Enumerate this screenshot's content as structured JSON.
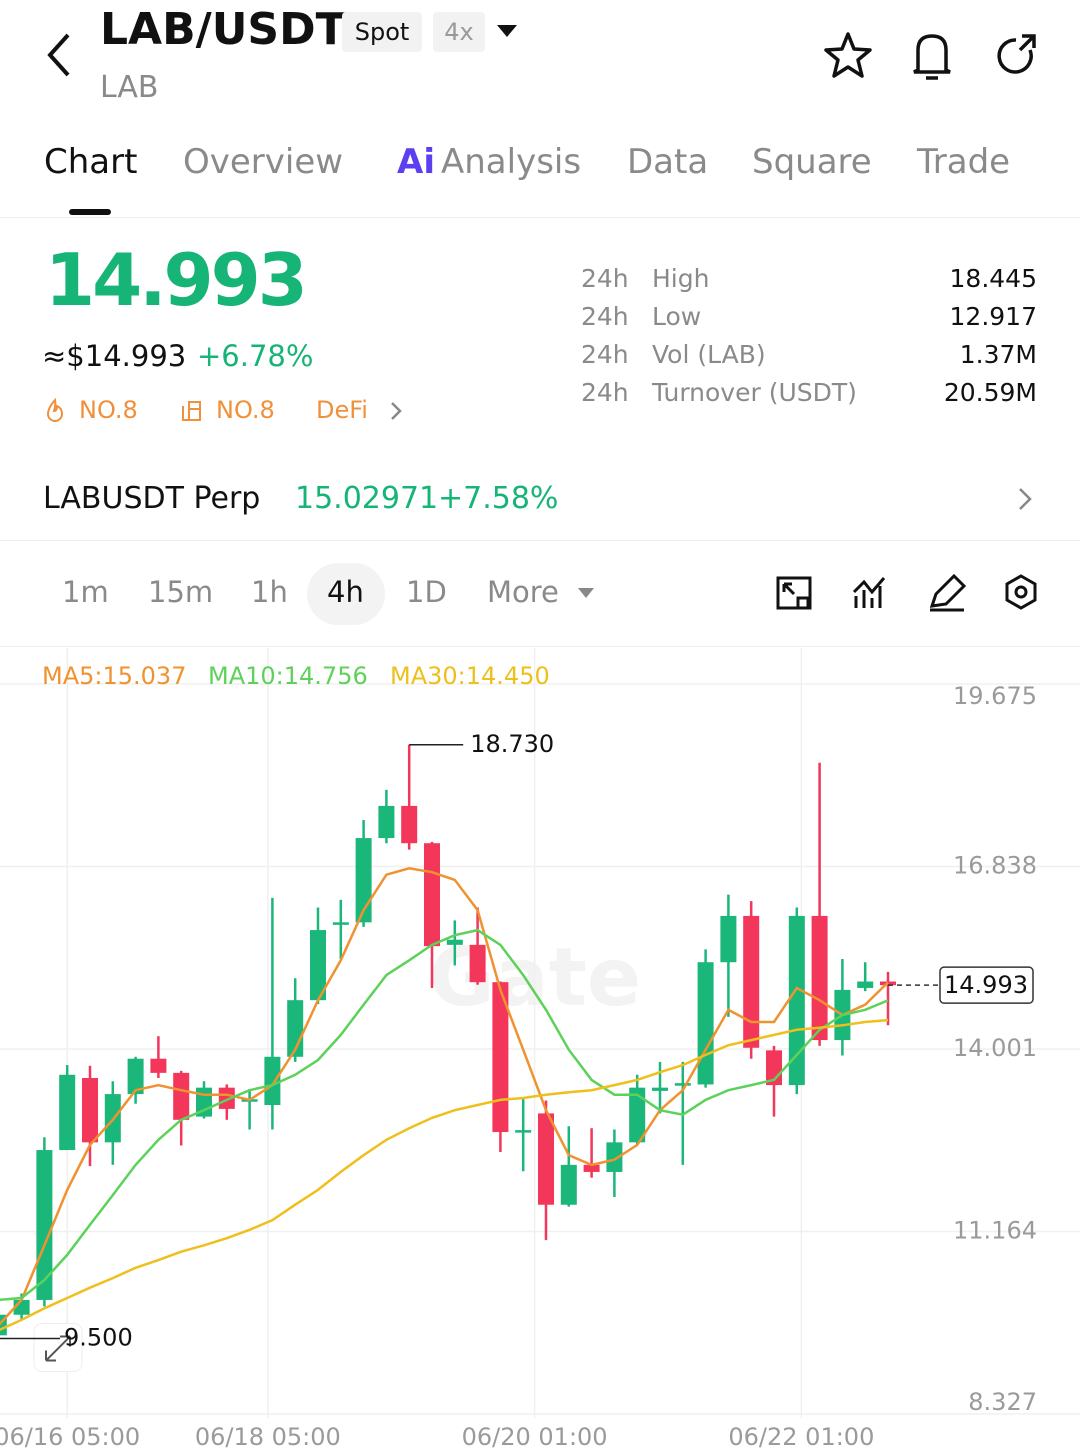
{
  "header": {
    "title": "LAB/USDT",
    "badges": [
      "Spot",
      "4x"
    ],
    "subtitle": "LAB"
  },
  "tabs": {
    "items": [
      "Chart",
      "Overview",
      "Analysis",
      "Data",
      "Square",
      "Trade"
    ],
    "ai_icon": "Ai"
  },
  "price": {
    "last": "14.993",
    "usd": "≈$14.993",
    "change": "+6.78%",
    "tags": [
      "NO.8",
      "NO.8",
      "DeFi"
    ]
  },
  "stats": {
    "rows": [
      [
        "24h",
        "High",
        "18.445"
      ],
      [
        "24h",
        "Low",
        "12.917"
      ],
      [
        "24h",
        "Vol (LAB)",
        "1.37M"
      ],
      [
        "24h",
        "Turnover (USDT)",
        "20.59M"
      ]
    ]
  },
  "perp": {
    "name": "LABUSDT Perp",
    "price": "15.02971",
    "change": "+7.58%"
  },
  "timeframes": [
    "1m",
    "15m",
    "1h",
    "4h",
    "1D",
    "More"
  ],
  "chart_data": {
    "type": "candlestick",
    "categories": [
      null,
      null,
      null,
      null,
      null,
      null,
      null,
      null,
      null,
      null,
      null,
      null,
      null,
      null,
      null,
      null,
      null,
      null,
      null,
      null,
      null,
      null,
      null,
      null,
      null,
      null,
      null,
      null,
      null,
      null,
      null,
      null,
      null,
      null,
      null,
      null,
      null,
      null,
      null,
      null
    ],
    "open": [
      9.55,
      9.87,
      10.1,
      12.43,
      13.55,
      12.55,
      13.3,
      13.85,
      13.63,
      12.95,
      13.4,
      13.2,
      13.13,
      13.88,
      14.76,
      15.95,
      15.97,
      17.28,
      17.78,
      17.2,
      15.62,
      15.62,
      15.04,
      12.72,
      13.0,
      11.58,
      12.2,
      12.09,
      12.55,
      13.35,
      13.45,
      13.45,
      15.35,
      16.07,
      13.98,
      13.44,
      16.07,
      14.14,
      14.95,
      15.05
    ],
    "high": [
      9.95,
      10.2,
      12.63,
      13.75,
      13.74,
      13.5,
      13.88,
      14.2,
      13.66,
      13.5,
      13.45,
      13.38,
      16.35,
      15.1,
      16.2,
      16.32,
      17.56,
      18.03,
      18.73,
      17.22,
      16.0,
      16.2,
      15.05,
      13.25,
      13.2,
      12.8,
      12.77,
      12.75,
      13.6,
      13.8,
      13.8,
      15.55,
      16.4,
      16.3,
      14.05,
      16.2,
      18.45,
      15.4,
      15.35,
      15.2
    ],
    "low": [
      9.5,
      9.8,
      10.0,
      12.43,
      12.18,
      12.2,
      13.15,
      13.55,
      12.5,
      12.92,
      12.9,
      12.75,
      12.75,
      13.8,
      14.7,
      15.4,
      15.9,
      17.2,
      17.1,
      14.95,
      15.3,
      15.0,
      12.4,
      12.1,
      11.03,
      11.55,
      12.0,
      11.7,
      12.5,
      13.0,
      12.2,
      13.4,
      14.5,
      13.85,
      12.95,
      13.3,
      14.05,
      13.9,
      14.9,
      14.37
    ],
    "close": [
      9.87,
      10.1,
      12.43,
      13.6,
      12.55,
      13.3,
      13.85,
      13.63,
      12.9,
      13.4,
      13.07,
      13.22,
      13.88,
      14.76,
      15.85,
      15.97,
      17.28,
      17.78,
      17.2,
      15.6,
      15.7,
      15.04,
      12.71,
      12.74,
      11.58,
      12.2,
      12.09,
      12.55,
      13.4,
      13.4,
      13.47,
      15.35,
      16.07,
      14.02,
      13.44,
      16.07,
      14.14,
      14.92,
      15.05,
      14.993
    ],
    "up_color": "#1bb67a",
    "down_color": "#f2375b",
    "series": [
      {
        "name": "MA5:15.037",
        "color": "#f0922f",
        "values": [
          9.71,
          10.1,
          10.95,
          11.81,
          12.51,
          12.9,
          13.36,
          13.44,
          13.36,
          13.29,
          13.29,
          13.21,
          13.44,
          13.99,
          14.76,
          15.38,
          16.16,
          16.71,
          16.81,
          16.75,
          16.63,
          16.16,
          14.92,
          13.99,
          13.05,
          12.35,
          12.2,
          12.28,
          12.51,
          13.05,
          13.36,
          13.99,
          14.61,
          14.42,
          14.42,
          14.95,
          14.76,
          14.53,
          14.69,
          15.037
        ]
      },
      {
        "name": "MA10:14.756",
        "color": "#5dd25a",
        "values": [
          10.1,
          10.13,
          10.41,
          10.8,
          11.27,
          11.73,
          12.2,
          12.59,
          12.9,
          13.05,
          13.21,
          13.36,
          13.44,
          13.6,
          13.83,
          14.22,
          14.69,
          15.15,
          15.38,
          15.62,
          15.77,
          15.85,
          15.62,
          15.15,
          14.61,
          13.99,
          13.52,
          13.29,
          13.29,
          13.05,
          12.98,
          13.21,
          13.36,
          13.44,
          13.52,
          13.91,
          14.3,
          14.53,
          14.61,
          14.756
        ]
      },
      {
        "name": "MA30:14.450",
        "color": "#efbf1c",
        "values": [
          9.63,
          9.79,
          9.97,
          10.13,
          10.29,
          10.44,
          10.6,
          10.72,
          10.85,
          10.95,
          11.06,
          11.19,
          11.34,
          11.58,
          11.81,
          12.09,
          12.35,
          12.59,
          12.77,
          12.93,
          13.05,
          13.13,
          13.21,
          13.24,
          13.29,
          13.33,
          13.36,
          13.44,
          13.52,
          13.64,
          13.75,
          13.91,
          14.06,
          14.14,
          14.22,
          14.3,
          14.33,
          14.37,
          14.42,
          14.45
        ]
      }
    ],
    "ylim": [
      8.327,
      19.675
    ],
    "yticks": [
      19.675,
      16.838,
      14.001,
      11.164,
      8.327
    ],
    "xticks": [
      {
        "value": 3,
        "label": "06/16 05:00"
      },
      {
        "value": 11.8,
        "label": "06/18 05:00"
      },
      {
        "value": 23.5,
        "label": "06/20 01:00"
      },
      {
        "value": 35.2,
        "label": "06/22 01:00"
      }
    ],
    "grid": true,
    "annotations": [
      {
        "value": 18.73,
        "label": "18.730"
      },
      {
        "value": 9.5,
        "label": "9.500"
      }
    ],
    "last_price": {
      "value": 14.993,
      "label": "14.993"
    },
    "watermark": "Gate"
  }
}
